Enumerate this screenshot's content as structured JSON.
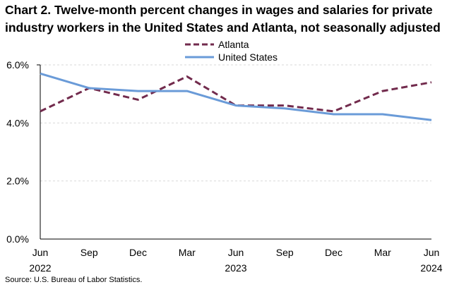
{
  "chart_data": {
    "type": "line",
    "title": [
      "Chart 2. Twelve-month percent changes in wages and salaries for private",
      "industry workers in the United States and Atlanta, not seasonally adjusted"
    ],
    "categories": [
      "Jun",
      "Sep",
      "Dec",
      "Mar",
      "Jun",
      "Sep",
      "Dec",
      "Mar",
      "Jun"
    ],
    "year_labels": [
      "2022",
      "",
      "",
      "",
      "2023",
      "",
      "",
      "",
      "2024"
    ],
    "series": [
      {
        "name": "Atlanta",
        "color": "#722b4d",
        "style": "dashed",
        "values": [
          4.4,
          5.2,
          4.8,
          5.6,
          4.6,
          4.6,
          4.4,
          5.1,
          5.4
        ]
      },
      {
        "name": "United States",
        "color": "#6a9bd8",
        "style": "solid",
        "values": [
          5.7,
          5.2,
          5.1,
          5.1,
          4.6,
          4.5,
          4.3,
          4.3,
          4.1
        ]
      }
    ],
    "ylim": [
      0,
      6
    ],
    "yticks": [
      0,
      2,
      4,
      6
    ],
    "ytick_labels": [
      "0.0%",
      "2.0%",
      "4.0%",
      "6.0%"
    ],
    "xlabel": "",
    "ylabel": "",
    "grid": "horizontal-dashed",
    "legend": "top-center",
    "source": "Source: U.S. Bureau of Labor Statistics."
  }
}
